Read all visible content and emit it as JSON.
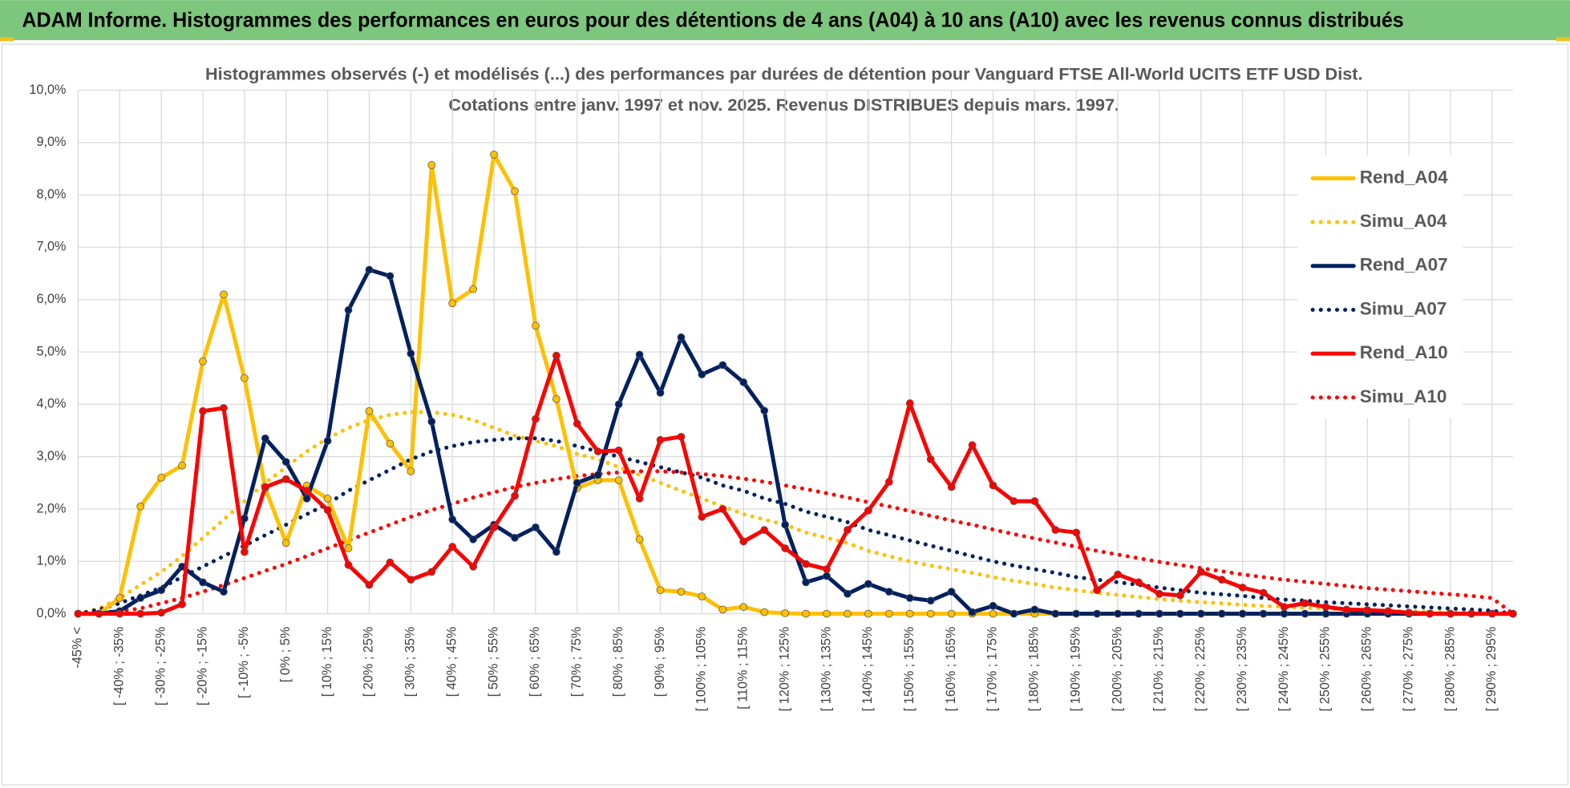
{
  "header": {
    "title": "ADAM Informe. Histogrammes des performances en euros pour des détentions de 4 ans (A04) à 10 ans (A10) avec les revenus connus distribués"
  },
  "chart_data": {
    "type": "line",
    "title": "Histogrammes observés (-) et modélisés (...) des performances par durées de détention pour Vanguard FTSE All-World UCITS ETF USD Dist.",
    "subtitle": "Cotations entre janv. 1997 et nov. 2025. Revenus DISTRIBUES depuis mars. 1997.",
    "categories": [
      "-45% <",
      null,
      "[ -40% ; -35%",
      null,
      "[ -30% ; -25%",
      null,
      "[ -20% ; -15%",
      null,
      "[ -10% ; -5%",
      null,
      "[ 0% ; 5%",
      null,
      "[ 10% ; 15%",
      null,
      "[ 20% ; 25%",
      null,
      "[ 30% ; 35%",
      null,
      "[ 40% ; 45%",
      null,
      "[ 50% ; 55%",
      null,
      "[ 60% ; 65%",
      null,
      "[ 70% ; 75%",
      null,
      "[ 80% ; 85%",
      null,
      "[ 90% ; 95%",
      null,
      "[ 100% ; 105%",
      null,
      "[ 110% ; 115%",
      null,
      "[ 120% ; 125%",
      null,
      "[ 130% ; 135%",
      null,
      "[ 140% ; 145%",
      null,
      "[ 150% ; 155%",
      null,
      "[ 160% ; 165%",
      null,
      "[ 170% ; 175%",
      null,
      "[ 180% ; 185%",
      null,
      "[ 190% ; 195%",
      null,
      "[ 200% ; 205%",
      null,
      "[ 210% ; 215%",
      null,
      "[ 220% ; 225%",
      null,
      "[ 230% ; 235%",
      null,
      "[ 240% ; 245%",
      null,
      "[ 250% ; 255%",
      null,
      "[ 260% ; 265%",
      null,
      "[ 270% ; 275%",
      null,
      "[ 280% ; 285%",
      null,
      "[ 290% ; 295%",
      null
    ],
    "ylim": [
      0,
      10
    ],
    "yticks": [
      {
        "value": 0,
        "label": "0,0%"
      },
      {
        "value": 1,
        "label": "1,0%"
      },
      {
        "value": 2,
        "label": "2,0%"
      },
      {
        "value": 3,
        "label": "3,0%"
      },
      {
        "value": 4,
        "label": "4,0%"
      },
      {
        "value": 5,
        "label": "5,0%"
      },
      {
        "value": 6,
        "label": "6,0%"
      },
      {
        "value": 7,
        "label": "7,0%"
      },
      {
        "value": 8,
        "label": "8,0%"
      },
      {
        "value": 9,
        "label": "9,0%"
      },
      {
        "value": 10,
        "label": "10,0%"
      }
    ],
    "grid": true,
    "legend": "right",
    "series": [
      {
        "name": "Rend_A04",
        "color": "#ffc000",
        "style": "solid",
        "markers": true,
        "values": [
          0,
          0,
          0.3,
          2.05,
          2.6,
          2.83,
          4.82,
          6.1,
          4.5,
          2.4,
          1.35,
          2.45,
          2.2,
          1.25,
          3.87,
          3.25,
          2.72,
          8.57,
          5.93,
          6.2,
          8.77,
          8.07,
          5.5,
          4.1,
          2.4,
          2.55,
          2.55,
          1.42,
          0.45,
          0.42,
          0.33,
          0.08,
          0.13,
          0.03,
          0.01,
          0,
          0,
          0,
          0,
          0,
          0,
          0,
          0,
          0,
          0,
          0,
          0,
          0,
          0,
          0,
          0,
          0,
          0,
          0,
          0,
          0,
          0,
          0,
          0,
          0,
          0,
          0,
          0,
          0,
          0,
          0,
          0,
          0,
          0,
          0
        ]
      },
      {
        "name": "Simu_A04",
        "color": "#ffc000",
        "style": "dotted",
        "markers": false,
        "values": [
          0,
          0.1,
          0.3,
          0.55,
          0.8,
          1.1,
          1.45,
          1.8,
          2.15,
          2.5,
          2.8,
          3.1,
          3.35,
          3.55,
          3.7,
          3.8,
          3.85,
          3.85,
          3.8,
          3.7,
          3.55,
          3.4,
          3.3,
          3.2,
          3.05,
          2.95,
          2.8,
          2.65,
          2.5,
          2.35,
          2.2,
          2.05,
          1.9,
          1.8,
          1.7,
          1.55,
          1.45,
          1.35,
          1.2,
          1.1,
          1.0,
          0.92,
          0.85,
          0.78,
          0.7,
          0.63,
          0.57,
          0.5,
          0.45,
          0.4,
          0.36,
          0.32,
          0.28,
          0.25,
          0.22,
          0.2,
          0.17,
          0.15,
          0.13,
          0.11,
          0.1,
          0.08,
          0.07,
          0.06,
          0.05,
          0.04,
          0.03,
          0.02,
          0.01,
          0
        ]
      },
      {
        "name": "Rend_A07",
        "color": "#002060",
        "style": "solid",
        "markers": true,
        "values": [
          0,
          0,
          0.05,
          0.3,
          0.45,
          0.9,
          0.6,
          0.42,
          1.82,
          3.35,
          2.9,
          2.2,
          3.3,
          5.8,
          6.57,
          6.45,
          4.97,
          3.67,
          1.8,
          1.42,
          1.7,
          1.45,
          1.65,
          1.18,
          2.5,
          2.65,
          4.0,
          4.95,
          4.22,
          5.28,
          4.57,
          4.75,
          4.42,
          3.88,
          1.7,
          0.6,
          0.72,
          0.38,
          0.57,
          0.42,
          0.3,
          0.25,
          0.42,
          0.03,
          0.15,
          0,
          0.08,
          0,
          0,
          0,
          0,
          0,
          0,
          0,
          0,
          0,
          0,
          0,
          0,
          0,
          0,
          0,
          0,
          0,
          0,
          0,
          0,
          0,
          0,
          0
        ]
      },
      {
        "name": "Simu_A07",
        "color": "#002060",
        "style": "dotted",
        "markers": false,
        "values": [
          0,
          0.08,
          0.2,
          0.35,
          0.5,
          0.7,
          0.9,
          1.1,
          1.3,
          1.5,
          1.7,
          1.9,
          2.1,
          2.35,
          2.55,
          2.75,
          2.95,
          3.1,
          3.2,
          3.28,
          3.32,
          3.35,
          3.35,
          3.3,
          3.2,
          3.1,
          3.0,
          2.9,
          2.8,
          2.7,
          2.6,
          2.45,
          2.35,
          2.2,
          2.1,
          1.95,
          1.85,
          1.75,
          1.6,
          1.5,
          1.4,
          1.3,
          1.2,
          1.1,
          1.0,
          0.92,
          0.85,
          0.78,
          0.7,
          0.65,
          0.6,
          0.55,
          0.5,
          0.45,
          0.4,
          0.37,
          0.34,
          0.3,
          0.27,
          0.25,
          0.22,
          0.2,
          0.18,
          0.16,
          0.14,
          0.12,
          0.1,
          0.08,
          0.06,
          0
        ]
      },
      {
        "name": "Rend_A10",
        "color": "#ff0000",
        "style": "solid",
        "markers": true,
        "values": [
          0,
          0,
          0,
          0,
          0.02,
          0.18,
          3.87,
          3.93,
          1.18,
          2.42,
          2.57,
          2.35,
          1.98,
          0.93,
          0.55,
          0.98,
          0.65,
          0.8,
          1.28,
          0.9,
          1.65,
          2.25,
          3.72,
          4.93,
          3.63,
          3.1,
          3.12,
          2.2,
          3.32,
          3.38,
          1.85,
          2.0,
          1.38,
          1.6,
          1.25,
          0.95,
          0.85,
          1.6,
          1.97,
          2.52,
          4.02,
          2.95,
          2.42,
          3.22,
          2.45,
          2.15,
          2.15,
          1.6,
          1.55,
          0.45,
          0.75,
          0.6,
          0.38,
          0.35,
          0.8,
          0.65,
          0.5,
          0.4,
          0.13,
          0.2,
          0.13,
          0.08,
          0.07,
          0.05,
          0.02,
          0,
          0,
          0,
          0,
          0
        ]
      },
      {
        "name": "Simu_A10",
        "color": "#ff0000",
        "style": "dotted",
        "markers": false,
        "values": [
          0,
          0.02,
          0.05,
          0.1,
          0.2,
          0.3,
          0.42,
          0.55,
          0.68,
          0.82,
          0.95,
          1.1,
          1.25,
          1.4,
          1.55,
          1.7,
          1.85,
          1.98,
          2.1,
          2.22,
          2.32,
          2.42,
          2.5,
          2.57,
          2.63,
          2.67,
          2.7,
          2.72,
          2.72,
          2.7,
          2.67,
          2.63,
          2.58,
          2.52,
          2.45,
          2.38,
          2.3,
          2.22,
          2.13,
          2.05,
          1.96,
          1.87,
          1.78,
          1.7,
          1.61,
          1.52,
          1.44,
          1.36,
          1.28,
          1.2,
          1.13,
          1.06,
          0.99,
          0.93,
          0.87,
          0.81,
          0.75,
          0.7,
          0.65,
          0.61,
          0.57,
          0.53,
          0.49,
          0.46,
          0.43,
          0.4,
          0.37,
          0.34,
          0.3,
          0
        ]
      }
    ]
  }
}
